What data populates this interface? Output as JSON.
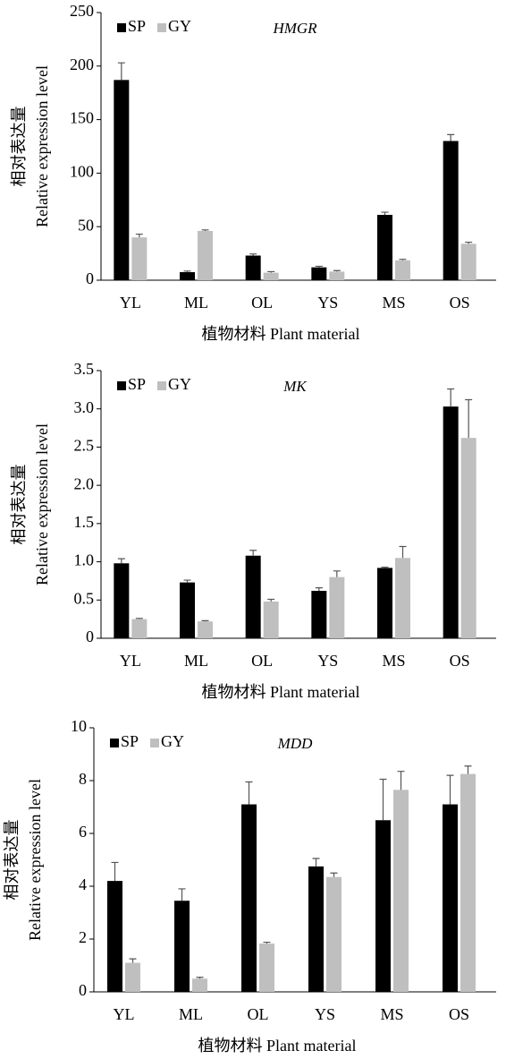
{
  "chart_data": [
    {
      "type": "bar",
      "title": "HMGR",
      "ylabel": [
        "相对表达量",
        "Relative expression level"
      ],
      "xlabel": "植物材料 Plant material",
      "categories": [
        "YL",
        "ML",
        "OL",
        "YS",
        "MS",
        "OS"
      ],
      "series": [
        {
          "name": "SP",
          "color": "#000000",
          "values": [
            187,
            7.5,
            23,
            12,
            61,
            130
          ],
          "errors": [
            16,
            1,
            1.5,
            1,
            2.5,
            6
          ]
        },
        {
          "name": "GY",
          "color": "#bfbfbf",
          "values": [
            40,
            46,
            7,
            8,
            18.5,
            34
          ],
          "errors": [
            3,
            1,
            1,
            1,
            1,
            1.5
          ]
        }
      ],
      "ylim": [
        0,
        250
      ],
      "yticks": [
        0,
        50,
        100,
        150,
        200,
        250
      ],
      "legend": "upper left"
    },
    {
      "type": "bar",
      "title": "MK",
      "ylabel": [
        "相对表达量",
        "Relative expression level"
      ],
      "xlabel": "植物材料 Plant material",
      "categories": [
        "YL",
        "ML",
        "OL",
        "YS",
        "MS",
        "OS"
      ],
      "series": [
        {
          "name": "SP",
          "color": "#000000",
          "values": [
            0.98,
            0.73,
            1.08,
            0.62,
            0.92,
            3.03
          ],
          "errors": [
            0.06,
            0.03,
            0.07,
            0.04,
            0.01,
            0.23
          ]
        },
        {
          "name": "GY",
          "color": "#bfbfbf",
          "values": [
            0.25,
            0.22,
            0.48,
            0.8,
            1.05,
            2.62
          ],
          "errors": [
            0.01,
            0.01,
            0.03,
            0.08,
            0.15,
            0.5
          ]
        }
      ],
      "ylim": [
        0,
        3.5
      ],
      "yticks": [
        0,
        0.5,
        {
          "value": 1,
          "label": "1.0"
        },
        1.5,
        {
          "value": 2,
          "label": "2.0"
        },
        2.5,
        {
          "value": 3,
          "label": "3.0"
        },
        3.5
      ],
      "legend": "upper left"
    },
    {
      "type": "bar",
      "title": "MDD",
      "ylabel": [
        "相对表达量",
        "Relative expression level"
      ],
      "xlabel": "植物材料 Plant material",
      "categories": [
        "YL",
        "ML",
        "OL",
        "YS",
        "MS",
        "OS"
      ],
      "series": [
        {
          "name": "SP",
          "color": "#000000",
          "values": [
            4.2,
            3.45,
            7.1,
            4.75,
            6.5,
            7.1
          ],
          "errors": [
            0.7,
            0.45,
            0.85,
            0.3,
            1.55,
            1.1
          ]
        },
        {
          "name": "GY",
          "color": "#bfbfbf",
          "values": [
            1.1,
            0.5,
            1.83,
            4.35,
            7.65,
            8.25
          ],
          "errors": [
            0.15,
            0.05,
            0.05,
            0.15,
            0.7,
            0.3
          ]
        }
      ],
      "ylim": [
        0,
        10
      ],
      "yticks": [
        0,
        2,
        4,
        6,
        8,
        10
      ],
      "legend": "upper left"
    }
  ]
}
